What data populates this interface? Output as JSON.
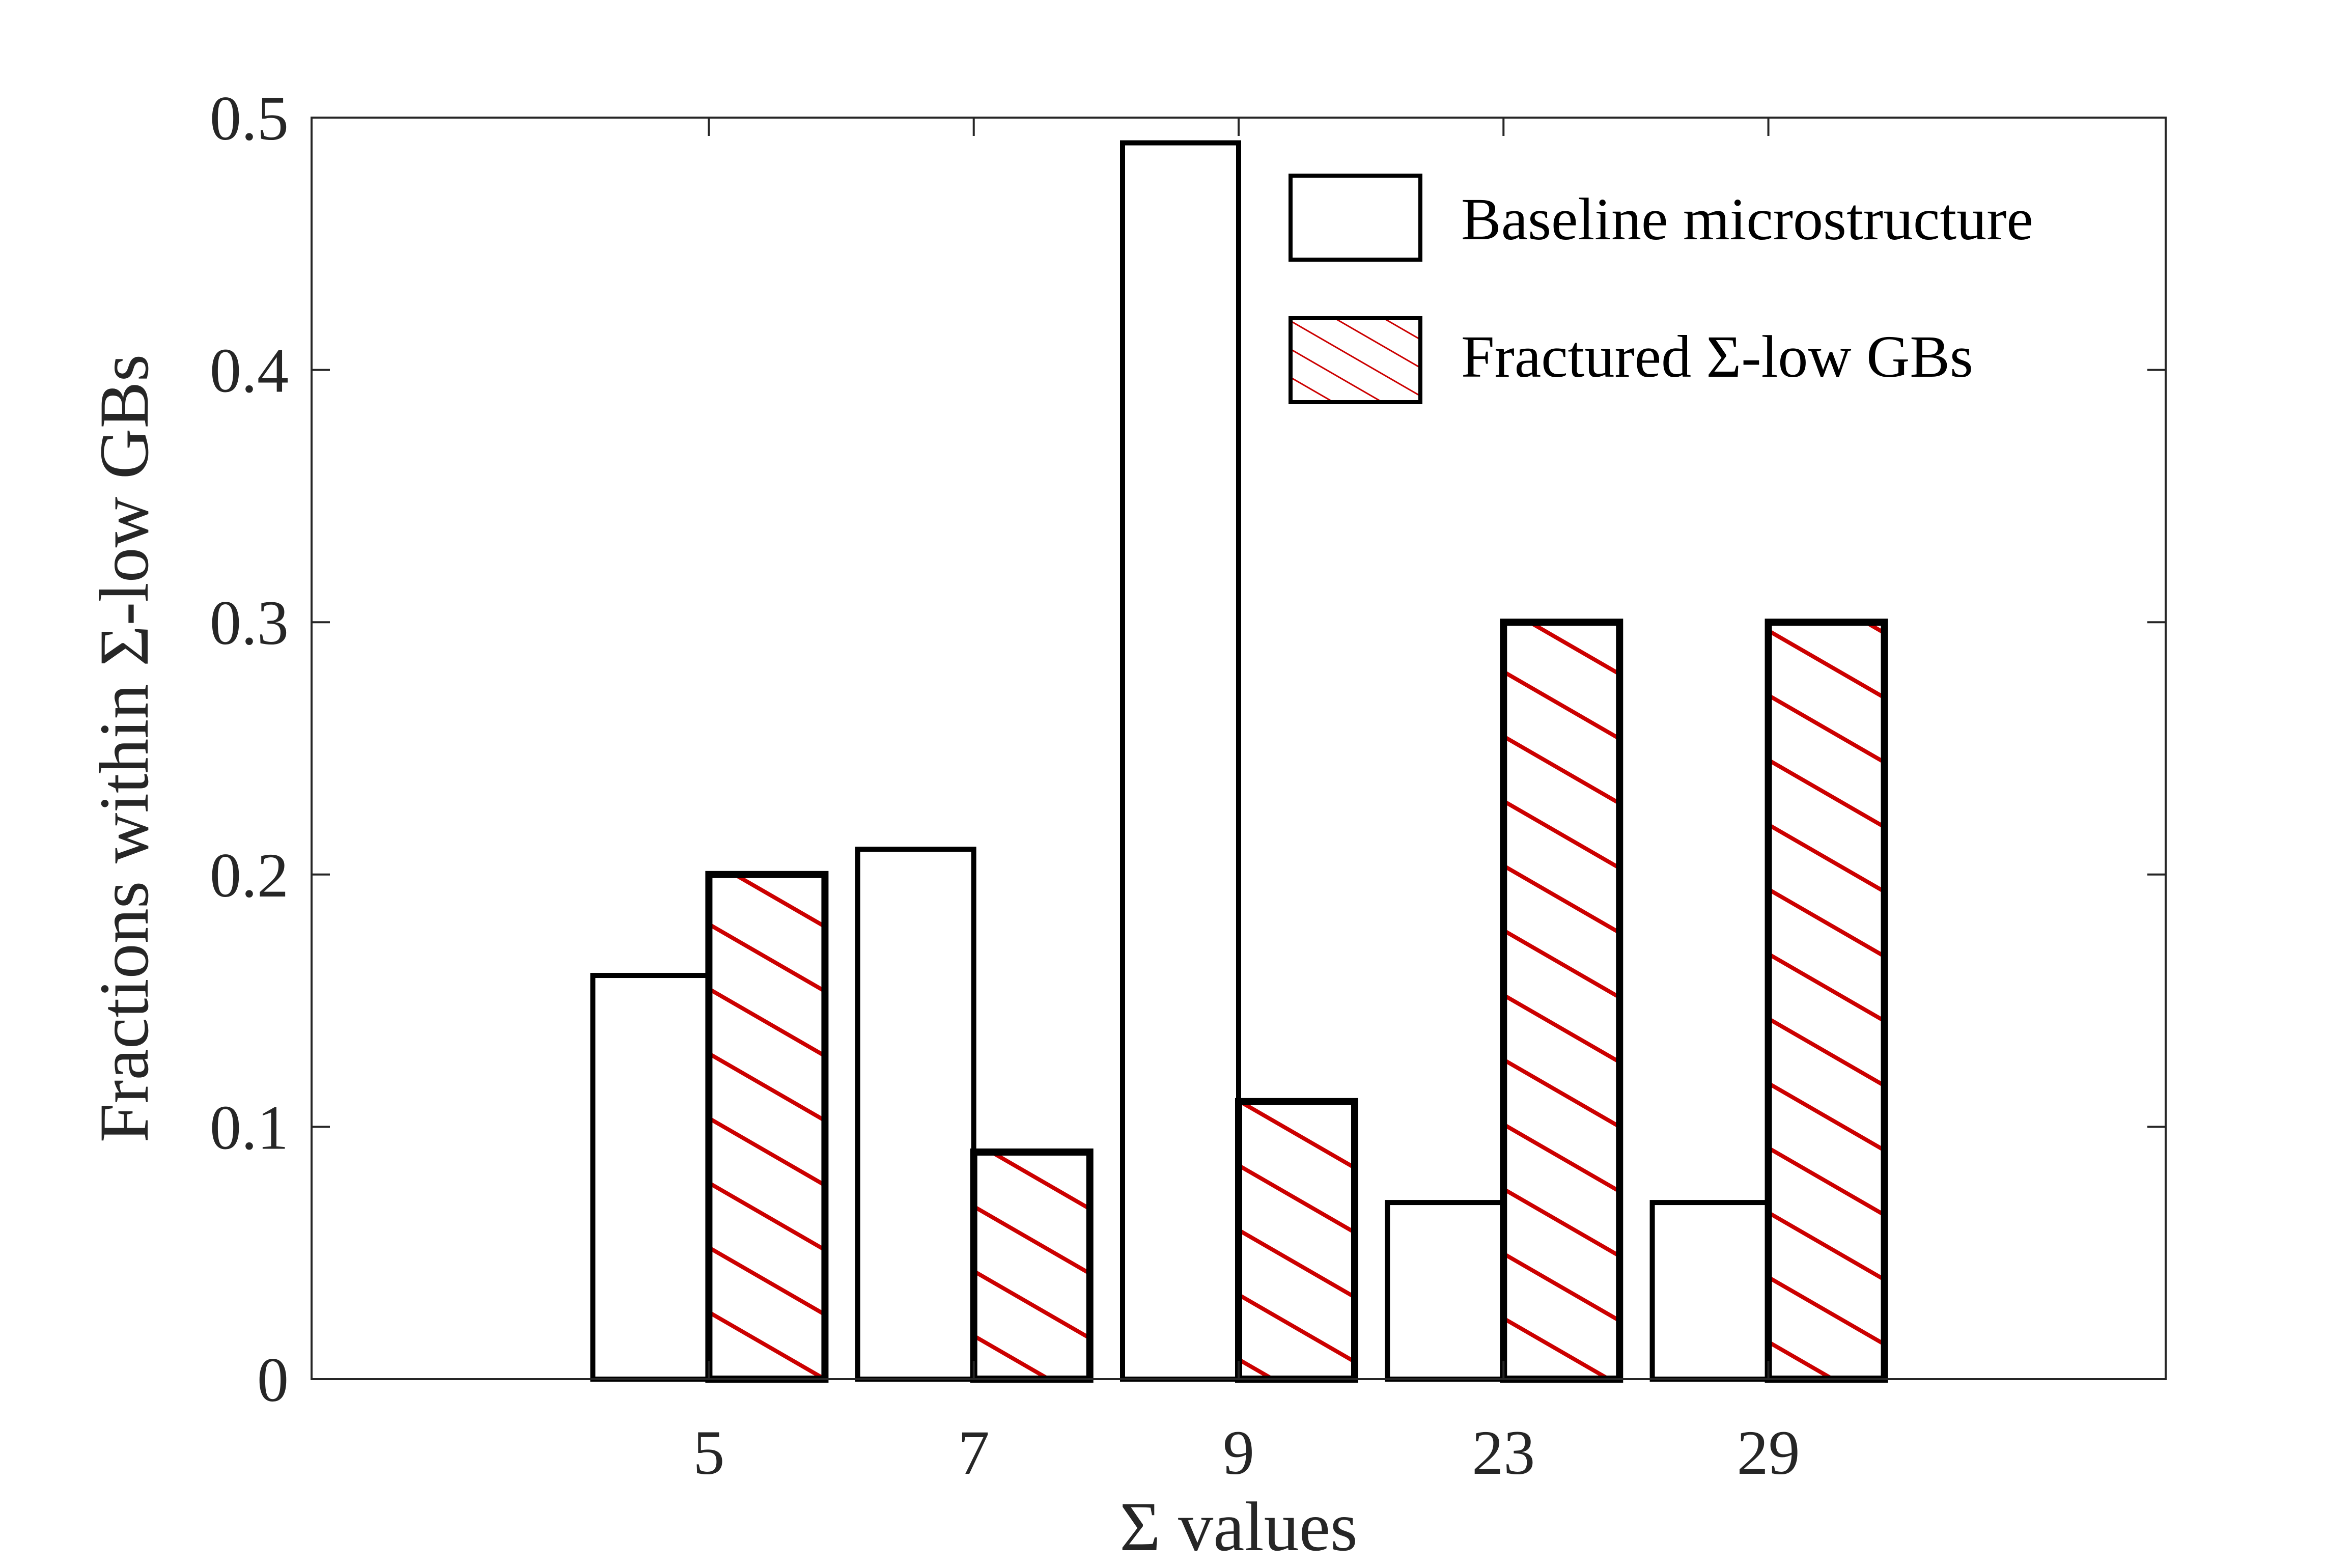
{
  "chart_data": {
    "type": "bar",
    "categories": [
      "5",
      "7",
      "9",
      "23",
      "29"
    ],
    "series": [
      {
        "name": "Baseline microstructure",
        "values": [
          0.16,
          0.21,
          0.49,
          0.07,
          0.07
        ],
        "fill": "none",
        "color": "#000000"
      },
      {
        "name": "Fractured Σ-low GBs",
        "values": [
          0.2,
          0.09,
          0.11,
          0.3,
          0.3
        ],
        "fill": "hatch",
        "color": "#cc0000"
      }
    ],
    "xlabel": "Σ values",
    "ylabel": "Fractions within Σ-low GBs",
    "ylim": [
      0,
      0.5
    ],
    "yticks": [
      "0",
      "0.1",
      "0.2",
      "0.3",
      "0.4",
      "0.5"
    ],
    "grid": false,
    "legend": "top-right"
  }
}
